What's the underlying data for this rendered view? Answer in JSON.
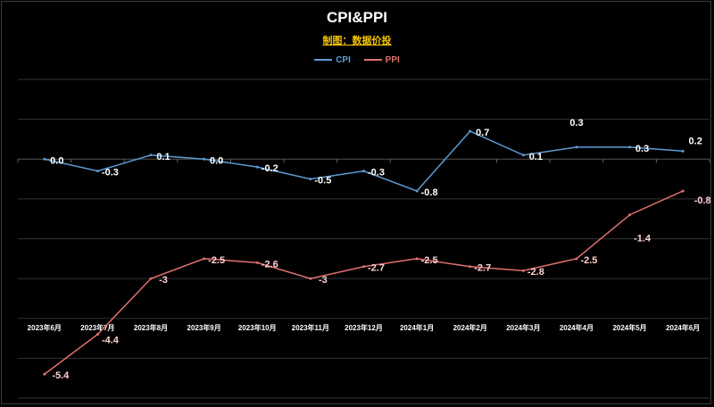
{
  "chart_data": {
    "type": "line",
    "title": "CPI&PPI",
    "subtitle": "制图：数据价投",
    "categories": [
      "2023年6月",
      "2023年7月",
      "2023年8月",
      "2023年9月",
      "2023年10月",
      "2023年11月",
      "2023年12月",
      "2024年1月",
      "2024年2月",
      "2024年3月",
      "2024年4月",
      "2024年5月",
      "2024年6月"
    ],
    "series": [
      {
        "name": "CPI",
        "color": "#5b9bd5",
        "values": [
          0.0,
          -0.3,
          0.1,
          0.0,
          -0.2,
          -0.5,
          -0.3,
          -0.8,
          0.7,
          0.1,
          0.3,
          0.3,
          0.2
        ],
        "labels": [
          "0.0",
          "-0.3",
          "0.1",
          "0.0",
          "-0.2",
          "-0.5",
          "-0.3",
          "-0.8",
          "0.7",
          "0.1",
          "0.3",
          "0.3",
          "0.2"
        ]
      },
      {
        "name": "PPI",
        "color": "#e07070",
        "values": [
          -5.4,
          -4.4,
          -3.0,
          -2.5,
          -2.6,
          -3.0,
          -2.7,
          -2.5,
          -2.7,
          -2.8,
          -2.5,
          -1.4,
          -0.8
        ],
        "labels": [
          "-5.4",
          "-4.4",
          "-3",
          "-2.5",
          "-2.6",
          "-3",
          "-2.7",
          "-2.5",
          "-2.7",
          "-2.8",
          "-2.5",
          "-1.4",
          "-0.8"
        ]
      }
    ],
    "ylim": [
      -6,
      2
    ],
    "grid": true,
    "legend": "top"
  }
}
